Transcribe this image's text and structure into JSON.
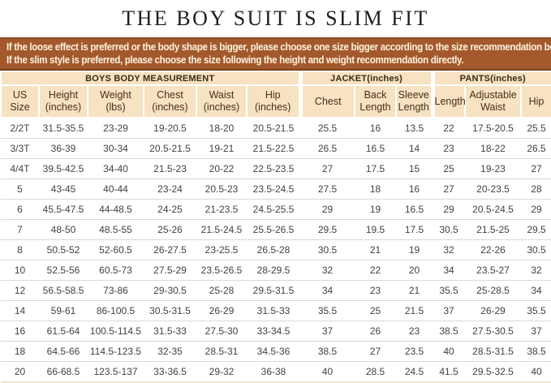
{
  "title": "THE BOY SUIT IS SLIM FIT",
  "banner": {
    "line1": "If the loose effect is preferred or the body shape is bigger,  please choose one size bigger according to the size recommendation below;",
    "line2": "If the slim style is preferred, please choose the size following the height and weight recommendation directly."
  },
  "colors": {
    "banner_bg": "#a4592c",
    "banner_border": "#7a4018",
    "banner_text": "#fcf1de",
    "header_bg": "#f7e2c1",
    "header_text": "#44301c",
    "body_text": "#424242",
    "row_line": "#d9d9d9",
    "title_text": "#1f1f1f"
  },
  "table": {
    "groups": [
      {
        "label": "BOYS BODY MEASUREMENT",
        "span": 6
      },
      {
        "label": "JACKET(inches)",
        "span": 3
      },
      {
        "label": "PANTS(inches)",
        "span": 3
      }
    ],
    "columns": [
      "US Size",
      "Height\n(inches)",
      "Weight\n(lbs)",
      "Chest\n(inches)",
      "Waist\n(inches)",
      "Hip\n(inches)",
      "Chest",
      "Back\nLength",
      "Sleeve\nLength",
      "Length",
      "Adjustable\nWaist",
      "Hip"
    ],
    "rows": [
      [
        "2/2T",
        "31.5-35.5",
        "23-29",
        "19-20.5",
        "18-20",
        "20.5-21.5",
        "25.5",
        "16",
        "13.5",
        "22",
        "17.5-20.5",
        "25.5"
      ],
      [
        "3/3T",
        "36-39",
        "30-34",
        "20.5-21.5",
        "19-21",
        "21.5-22.5",
        "26.5",
        "16.5",
        "14",
        "23",
        "18-22",
        "26.5"
      ],
      [
        "4/4T",
        "39.5-42.5",
        "34-40",
        "21.5-23",
        "20-22",
        "22.5-23.5",
        "27",
        "17.5",
        "15",
        "25",
        "19-23",
        "27"
      ],
      [
        "5",
        "43-45",
        "40-44",
        "23-24",
        "20.5-23",
        "23.5-24.5",
        "27.5",
        "18",
        "16",
        "27",
        "20-23.5",
        "28"
      ],
      [
        "6",
        "45.5-47.5",
        "44-48.5",
        "24-25",
        "21-23.5",
        "24.5-25.5",
        "29",
        "19",
        "16.5",
        "29",
        "20.5-24.5",
        "29"
      ],
      [
        "7",
        "48-50",
        "48.5-55",
        "25-26",
        "21.5-24.5",
        "25.5-26.5",
        "29.5",
        "19.5",
        "17.5",
        "30.5",
        "21.5-25",
        "29.5"
      ],
      [
        "8",
        "50.5-52",
        "52-60.5",
        "26-27.5",
        "23-25.5",
        "26.5-28",
        "30.5",
        "21",
        "19",
        "32",
        "22-26",
        "30.5"
      ],
      [
        "10",
        "52.5-56",
        "60.5-73",
        "27.5-29",
        "23.5-26.5",
        "28-29.5",
        "32",
        "22",
        "20",
        "34",
        "23.5-27",
        "32"
      ],
      [
        "12",
        "56.5-58.5",
        "73-86",
        "29-30.5",
        "25-28",
        "29.5-31.5",
        "34",
        "23",
        "21",
        "35.5",
        "25-28.5",
        "34"
      ],
      [
        "14",
        "59-61",
        "86-100.5",
        "30.5-31.5",
        "26-29",
        "31.5-33",
        "35.5",
        "25",
        "21.5",
        "37",
        "26-29",
        "35.5"
      ],
      [
        "16",
        "61.5-64",
        "100.5-114.5",
        "31.5-33",
        "27.5-30",
        "33-34.5",
        "37",
        "26",
        "23",
        "38.5",
        "27.5-30.5",
        "37"
      ],
      [
        "18",
        "64.5-66",
        "114.5-123.5",
        "32-35",
        "28.5-31",
        "34.5-36",
        "38.5",
        "27",
        "23.5",
        "40",
        "28.5-31.5",
        "38.5"
      ],
      [
        "20",
        "66-68.5",
        "123.5-137",
        "33-36.5",
        "29-32",
        "36-38",
        "40",
        "28.5",
        "24.5",
        "41.5",
        "29.5-32.5",
        "40"
      ]
    ]
  }
}
